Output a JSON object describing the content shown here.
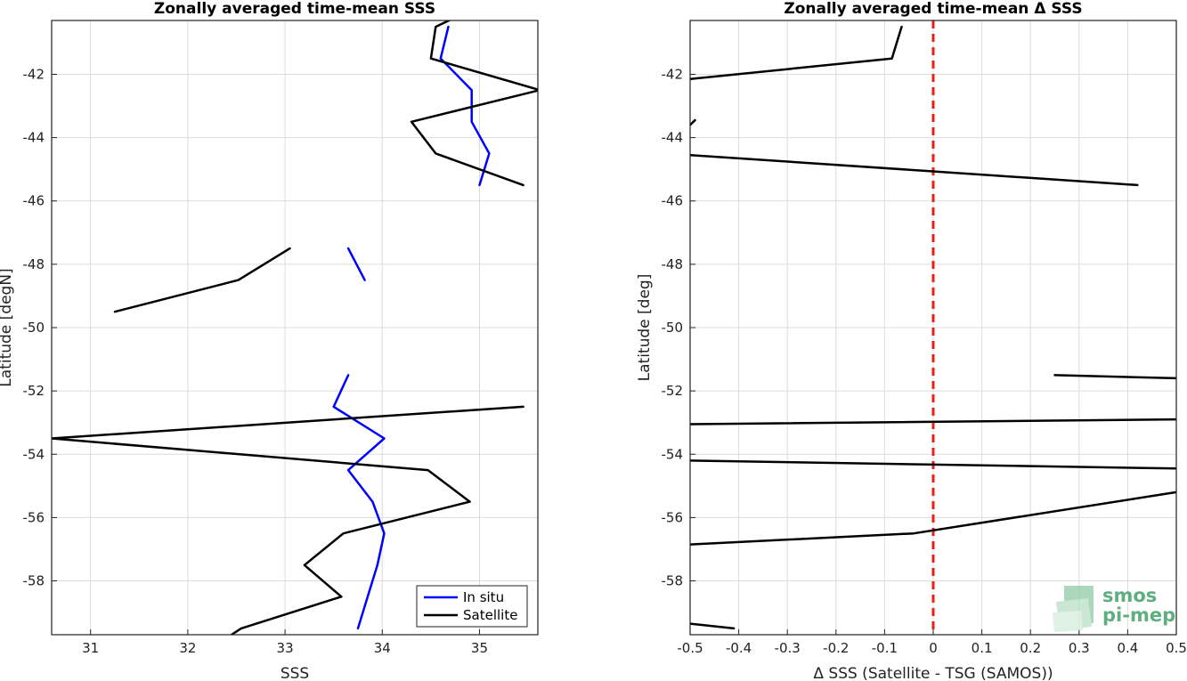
{
  "chart_data": [
    {
      "type": "line",
      "title": "Zonally averaged time-mean SSS",
      "xlabel": "SSS",
      "ylabel": "Latitude [degN]",
      "xlim": [
        30.6,
        35.6
      ],
      "ylim": [
        -59.7,
        -40.3
      ],
      "xticks": [
        "31",
        "32",
        "33",
        "34",
        "35"
      ],
      "yticks": [
        "-42",
        "-44",
        "-46",
        "-48",
        "-50",
        "-52",
        "-54",
        "-56",
        "-58"
      ],
      "grid": true,
      "legend": {
        "placement": "bottom-right",
        "entries": [
          "In situ",
          "Satellite"
        ]
      },
      "series": [
        {
          "name": "In situ",
          "color": "#0000ff",
          "segments": [
            [
              [
                34.68,
                -40.5
              ],
              [
                34.6,
                -41.5
              ],
              [
                34.92,
                -42.5
              ],
              [
                34.92,
                -43.5
              ],
              [
                35.1,
                -44.5
              ],
              [
                35.0,
                -45.5
              ]
            ],
            [
              [
                33.65,
                -47.5
              ],
              [
                33.82,
                -48.5
              ]
            ],
            [
              [
                33.65,
                -51.5
              ],
              [
                33.5,
                -52.5
              ],
              [
                34.02,
                -53.5
              ],
              [
                33.65,
                -54.5
              ],
              [
                33.9,
                -55.5
              ],
              [
                34.02,
                -56.5
              ],
              [
                33.95,
                -57.5
              ],
              [
                33.85,
                -58.5
              ],
              [
                33.75,
                -59.5
              ]
            ]
          ]
        },
        {
          "name": "Satellite",
          "color": "#000000",
          "segments": [
            [
              [
                34.72,
                -40.25
              ],
              [
                34.55,
                -40.5
              ],
              [
                34.5,
                -41.5
              ],
              [
                35.62,
                -42.5
              ],
              [
                34.3,
                -43.5
              ],
              [
                34.55,
                -44.5
              ],
              [
                35.45,
                -45.5
              ]
            ],
            [
              [
                33.05,
                -47.5
              ],
              [
                32.52,
                -48.5
              ],
              [
                31.25,
                -49.5
              ]
            ],
            [
              [
                35.45,
                -52.5
              ],
              [
                30.6,
                -53.5
              ],
              [
                34.47,
                -54.5
              ],
              [
                34.9,
                -55.5
              ],
              [
                33.6,
                -56.5
              ],
              [
                33.2,
                -57.5
              ],
              [
                33.58,
                -58.5
              ],
              [
                32.55,
                -59.5
              ],
              [
                32.45,
                -59.7
              ]
            ]
          ]
        }
      ]
    },
    {
      "type": "line",
      "title": "Zonally averaged time-mean Δ SSS",
      "xlabel": "Δ SSS (Satellite - TSG (SAMOS))",
      "ylabel": "Latitude [deg]",
      "xlim": [
        -0.5,
        0.5
      ],
      "ylim": [
        -59.7,
        -40.3
      ],
      "xticks": [
        "-0.5",
        "-0.4",
        "-0.3",
        "-0.2",
        "-0.1",
        "0",
        "0.1",
        "0.2",
        "0.3",
        "0.4",
        "0.5"
      ],
      "yticks": [
        "-42",
        "-44",
        "-46",
        "-48",
        "-50",
        "-52",
        "-54",
        "-56",
        "-58"
      ],
      "grid": true,
      "reference_line": {
        "x": 0,
        "color": "#e8201a",
        "style": "dashed"
      },
      "series": [
        {
          "color": "#000000",
          "segments": [
            [
              [
                -0.065,
                -40.5
              ],
              [
                -0.085,
                -41.5
              ],
              [
                -0.5,
                -42.15
              ]
            ],
            [
              [
                -0.5,
                -43.6
              ],
              [
                -0.49,
                -43.45
              ]
            ],
            [
              [
                -0.5,
                -44.55
              ],
              [
                0.42,
                -45.5
              ]
            ],
            [
              [
                0.25,
                -51.5
              ],
              [
                0.5,
                -51.6
              ]
            ],
            [
              [
                -0.5,
                -53.05
              ],
              [
                0.5,
                -52.9
              ]
            ],
            [
              [
                -0.5,
                -54.2
              ],
              [
                0.5,
                -54.45
              ]
            ],
            [
              [
                -0.5,
                -56.85
              ],
              [
                -0.04,
                -56.5
              ],
              [
                0.5,
                -55.2
              ]
            ],
            [
              [
                -0.5,
                -59.35
              ],
              [
                -0.41,
                -59.5
              ]
            ]
          ]
        }
      ]
    }
  ],
  "watermark": {
    "line1": "smos",
    "line2": "pi-mep"
  }
}
